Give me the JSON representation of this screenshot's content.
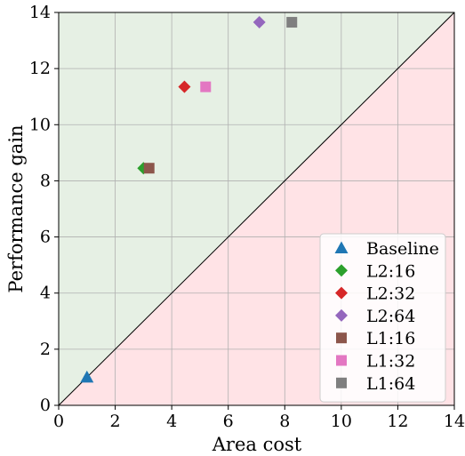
{
  "chart_data": {
    "type": "scatter",
    "title": "",
    "xlabel": "Area cost",
    "ylabel": "Performance gain",
    "xlim": [
      0,
      14
    ],
    "ylim": [
      0,
      14
    ],
    "xticks": [
      0,
      2,
      4,
      6,
      8,
      10,
      12,
      14
    ],
    "yticks": [
      0,
      2,
      4,
      6,
      8,
      10,
      12,
      14
    ],
    "grid": true,
    "legend_position": "lower-right",
    "regions": [
      {
        "above_diagonal": true,
        "color": "#e6f0e4"
      },
      {
        "above_diagonal": false,
        "color": "#ffe3e6"
      }
    ],
    "diagonal": {
      "from": [
        0,
        0
      ],
      "to": [
        14,
        14
      ],
      "color": "#000000"
    },
    "series": [
      {
        "name": "Baseline",
        "marker": "triangle",
        "color": "#1f77b4",
        "x": 1.0,
        "y": 1.0
      },
      {
        "name": "L2:16",
        "marker": "diamond",
        "color": "#2ca02c",
        "x": 3.0,
        "y": 8.45
      },
      {
        "name": "L2:32",
        "marker": "diamond",
        "color": "#d62728",
        "x": 4.45,
        "y": 11.35
      },
      {
        "name": "L2:64",
        "marker": "diamond",
        "color": "#9467bd",
        "x": 7.1,
        "y": 13.65
      },
      {
        "name": "L1:16",
        "marker": "square",
        "color": "#8c564b",
        "x": 3.2,
        "y": 8.45
      },
      {
        "name": "L1:32",
        "marker": "square",
        "color": "#e377c2",
        "x": 5.2,
        "y": 11.35
      },
      {
        "name": "L1:64",
        "marker": "square",
        "color": "#7f7f7f",
        "x": 8.25,
        "y": 13.65
      }
    ]
  }
}
